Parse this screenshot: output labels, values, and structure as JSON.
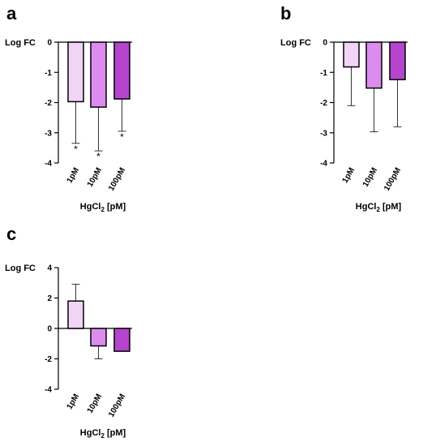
{
  "chart_data": [
    {
      "panel": "a",
      "type": "bar",
      "ylabel": "Log FC",
      "xlabel_prefix": "HgCl",
      "xlabel_sub": "2",
      "xlabel_suffix": " [pM]",
      "categories": [
        "1pM",
        "10pM",
        "100pM"
      ],
      "values": [
        -1.97,
        -2.15,
        -1.88
      ],
      "errors": [
        1.38,
        1.45,
        1.07
      ],
      "significance": [
        "*",
        "*",
        "*"
      ],
      "colors": [
        "#f2d4f7",
        "#dc8cef",
        "#b545cf"
      ],
      "ylim": [
        -4,
        0
      ],
      "yticks": [
        0,
        -1,
        -2,
        -3,
        -4
      ]
    },
    {
      "panel": "b",
      "type": "bar",
      "ylabel": "Log FC",
      "xlabel_prefix": "HgCl",
      "xlabel_sub": "2",
      "xlabel_suffix": " [pM]",
      "categories": [
        "1pM",
        "10pM",
        "100pM"
      ],
      "values": [
        -0.82,
        -1.52,
        -1.24
      ],
      "errors": [
        1.28,
        1.45,
        1.56
      ],
      "significance": [
        "",
        "",
        ""
      ],
      "colors": [
        "#f2d4f7",
        "#dc8cef",
        "#b545cf"
      ],
      "ylim": [
        -4,
        0
      ],
      "yticks": [
        0,
        -1,
        -2,
        -3,
        -4
      ]
    },
    {
      "panel": "c",
      "type": "bar",
      "ylabel": "Log FC",
      "xlabel_prefix": "HgCl",
      "xlabel_sub": "2",
      "xlabel_suffix": " [pM]",
      "categories": [
        "1pM",
        "10pM",
        "100pM"
      ],
      "values": [
        1.8,
        -1.15,
        -1.5
      ],
      "errors": [
        1.1,
        0.85,
        0.0
      ],
      "significance": [
        "",
        "",
        ""
      ],
      "colors": [
        "#f2d4f7",
        "#dc8cef",
        "#b545cf"
      ],
      "ylim": [
        -4,
        4
      ],
      "yticks": [
        4,
        2,
        0,
        -2,
        -4
      ]
    }
  ]
}
